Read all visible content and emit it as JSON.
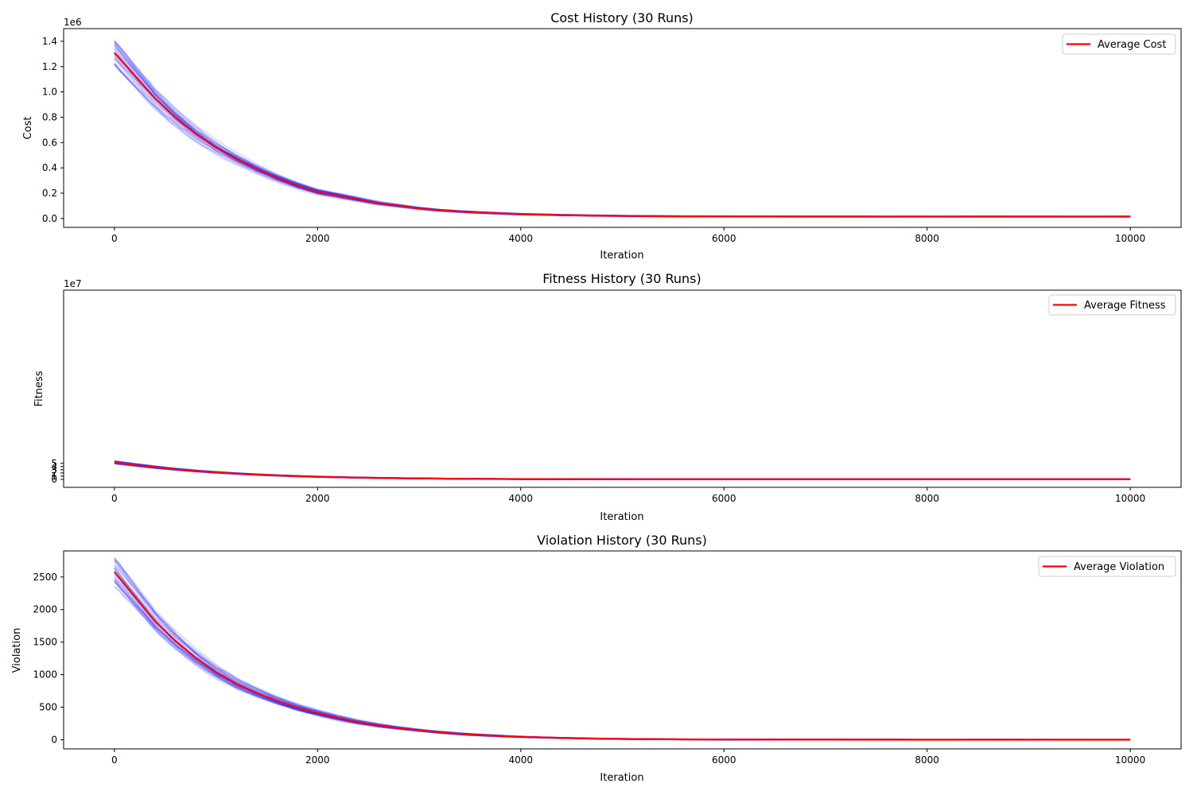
{
  "chart_data": [
    {
      "type": "line",
      "title": "Cost History (30 Runs)",
      "xlabel": "Iteration",
      "ylabel": "Cost",
      "y_offset_label": "1e6",
      "xlim": [
        -500,
        10500
      ],
      "ylim": [
        -0.07,
        1.5
      ],
      "x_ticks": [
        0,
        2000,
        4000,
        6000,
        8000,
        10000
      ],
      "x_tick_labels": [
        "0",
        "2000",
        "4000",
        "6000",
        "8000",
        "10000"
      ],
      "y_ticks": [
        0,
        0.2,
        0.4,
        0.6,
        0.8,
        1.0,
        1.2,
        1.4
      ],
      "y_tick_labels": [
        "0.0",
        "0.2",
        "0.4",
        "0.6",
        "0.8",
        "1.0",
        "1.2",
        "1.4"
      ],
      "grid": false,
      "legend_position": "top-right",
      "run_count": 30,
      "run_color": "#0000ff",
      "series": [
        {
          "name": "Average Cost",
          "color": "#ff0000",
          "x": [
            0,
            200,
            400,
            600,
            800,
            1000,
            1200,
            1400,
            1600,
            1800,
            2000,
            2200,
            2400,
            2600,
            2800,
            3000,
            3200,
            3400,
            3600,
            3800,
            4000,
            4400,
            4800,
            5200,
            5600,
            6000,
            7000,
            8000,
            9000,
            10000
          ],
          "values": [
            1.31,
            1.13,
            0.95,
            0.8,
            0.67,
            0.56,
            0.47,
            0.39,
            0.32,
            0.26,
            0.21,
            0.18,
            0.15,
            0.12,
            0.1,
            0.08,
            0.065,
            0.055,
            0.047,
            0.04,
            0.034,
            0.027,
            0.022,
            0.019,
            0.017,
            0.016,
            0.015,
            0.015,
            0.015,
            0.015
          ]
        }
      ]
    },
    {
      "type": "line",
      "title": "Fitness History (30 Runs)",
      "xlabel": "Iteration",
      "ylabel": "Fitness",
      "y_offset_label": "1e7",
      "xlim": [
        -500,
        10500
      ],
      "ylim": [
        -2.5,
        59
      ],
      "x_ticks": [
        0,
        2000,
        4000,
        6000,
        8000,
        10000
      ],
      "x_tick_labels": [
        "0",
        "2000",
        "4000",
        "6000",
        "8000",
        "10000"
      ],
      "y_ticks": [
        0,
        1,
        2,
        3,
        4,
        5
      ],
      "y_tick_labels": [
        "0",
        "1",
        "2",
        "3",
        "4",
        "5"
      ],
      "grid": false,
      "legend_position": "top-right",
      "run_count": 30,
      "run_color": "#0000ff",
      "series": [
        {
          "name": "Average Fitness",
          "color": "#ff0000",
          "x": [
            0,
            200,
            400,
            600,
            800,
            1000,
            1200,
            1400,
            1600,
            1800,
            2000,
            2200,
            2400,
            2600,
            2800,
            3000,
            3200,
            3400,
            3600,
            3800,
            4000,
            4400,
            4800,
            5200,
            5600,
            6000,
            7000,
            8000,
            9000,
            10000
          ],
          "values": [
            5.28,
            4.5,
            3.78,
            3.15,
            2.62,
            2.18,
            1.8,
            1.48,
            1.21,
            0.99,
            0.8,
            0.66,
            0.53,
            0.44,
            0.36,
            0.29,
            0.23,
            0.18,
            0.14,
            0.11,
            0.08,
            0.05,
            0.03,
            0.015,
            0.01,
            0.008,
            0.006,
            0.005,
            0.005,
            0.005
          ]
        }
      ]
    },
    {
      "type": "line",
      "title": "Violation History (30 Runs)",
      "xlabel": "Iteration",
      "ylabel": "Violation",
      "y_offset_label": "",
      "xlim": [
        -500,
        10500
      ],
      "ylim": [
        -140,
        2900
      ],
      "x_ticks": [
        0,
        2000,
        4000,
        6000,
        8000,
        10000
      ],
      "x_tick_labels": [
        "0",
        "2000",
        "4000",
        "6000",
        "8000",
        "10000"
      ],
      "y_ticks": [
        0,
        500,
        1000,
        1500,
        2000,
        2500
      ],
      "y_tick_labels": [
        "0",
        "500",
        "1000",
        "1500",
        "2000",
        "2500"
      ],
      "grid": false,
      "legend_position": "top-right",
      "run_count": 30,
      "run_color": "#0000ff",
      "series": [
        {
          "name": "Average Violation",
          "color": "#ff0000",
          "x": [
            0,
            200,
            400,
            600,
            800,
            1000,
            1200,
            1400,
            1600,
            1800,
            2000,
            2200,
            2400,
            2600,
            2800,
            3000,
            3200,
            3400,
            3600,
            3800,
            4000,
            4400,
            4800,
            5200,
            5600,
            6000,
            7000,
            8000,
            9000,
            10000
          ],
          "values": [
            2580,
            2200,
            1820,
            1520,
            1260,
            1040,
            860,
            720,
            600,
            495,
            410,
            335,
            270,
            220,
            180,
            145,
            115,
            90,
            72,
            58,
            45,
            28,
            16,
            10,
            6,
            4,
            2,
            1,
            1,
            1
          ]
        }
      ]
    }
  ]
}
